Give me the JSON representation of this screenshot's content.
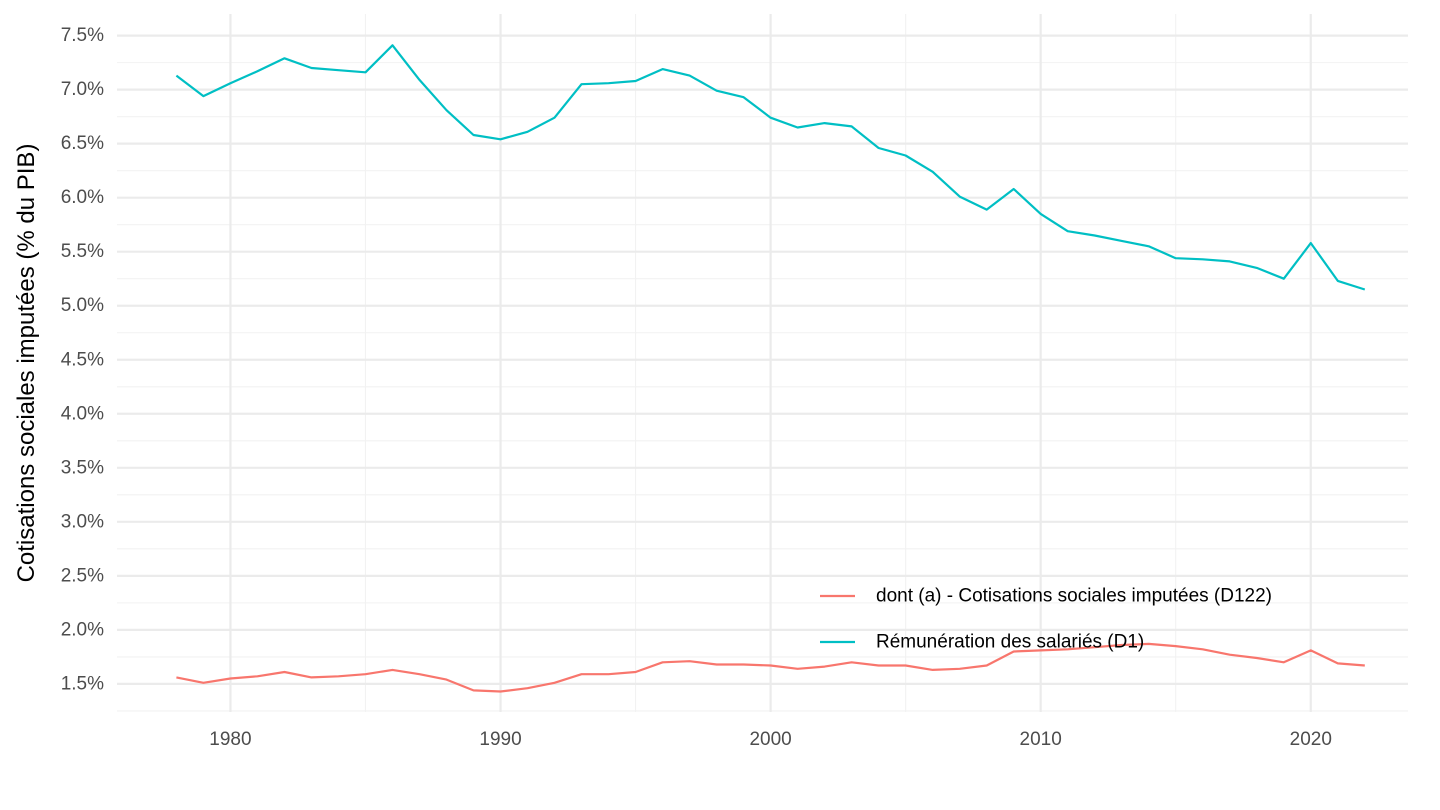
{
  "chart_data": {
    "type": "line",
    "title": "",
    "xlabel": "",
    "ylabel": "Cotisations sociales imputées (% du PIB)",
    "xlim": [
      1975.8,
      2023.6
    ],
    "ylim": [
      1.24,
      7.7
    ],
    "grid": true,
    "legend_position": "bottom-right",
    "x_ticks": [
      1980,
      1990,
      2000,
      2010,
      2020
    ],
    "x_tick_labels": [
      "1980",
      "1990",
      "2000",
      "2010",
      "2020"
    ],
    "y_ticks": [
      1.5,
      2.0,
      2.5,
      3.0,
      3.5,
      4.0,
      4.5,
      5.0,
      5.5,
      6.0,
      6.5,
      7.0,
      7.5
    ],
    "y_tick_labels": [
      "1.5%",
      "2.0%",
      "2.5%",
      "3.0%",
      "3.5%",
      "4.0%",
      "4.5%",
      "5.0%",
      "5.5%",
      "6.0%",
      "6.5%",
      "7.0%",
      "7.5%"
    ],
    "x": [
      1978,
      1979,
      1980,
      1981,
      1982,
      1983,
      1984,
      1985,
      1986,
      1987,
      1988,
      1989,
      1990,
      1991,
      1992,
      1993,
      1994,
      1995,
      1996,
      1997,
      1998,
      1999,
      2000,
      2001,
      2002,
      2003,
      2004,
      2005,
      2006,
      2007,
      2008,
      2009,
      2010,
      2011,
      2012,
      2013,
      2014,
      2015,
      2016,
      2017,
      2018,
      2019,
      2020,
      2021,
      2022
    ],
    "series": [
      {
        "name": "dont (a) - Cotisations sociales imputées (D122)",
        "color": "#F8766D",
        "values": [
          1.56,
          1.51,
          1.55,
          1.57,
          1.61,
          1.56,
          1.57,
          1.59,
          1.63,
          1.59,
          1.54,
          1.44,
          1.43,
          1.46,
          1.51,
          1.59,
          1.59,
          1.61,
          1.7,
          1.71,
          1.68,
          1.68,
          1.67,
          1.64,
          1.66,
          1.7,
          1.67,
          1.67,
          1.63,
          1.64,
          1.67,
          1.8,
          1.81,
          1.82,
          1.84,
          1.86,
          1.87,
          1.85,
          1.82,
          1.77,
          1.74,
          1.7,
          1.81,
          1.69,
          1.67
        ]
      },
      {
        "name": "Rémunération des salariés (D1)",
        "color": "#00BFC4",
        "values": [
          7.13,
          6.94,
          7.06,
          7.17,
          7.29,
          7.2,
          7.18,
          7.16,
          7.41,
          7.09,
          6.81,
          6.58,
          6.54,
          6.61,
          6.74,
          7.05,
          7.06,
          7.08,
          7.19,
          7.13,
          6.99,
          6.93,
          6.74,
          6.65,
          6.69,
          6.66,
          6.46,
          6.39,
          6.24,
          6.01,
          5.89,
          6.08,
          5.85,
          5.69,
          5.65,
          5.6,
          5.55,
          5.44,
          5.43,
          5.41,
          5.35,
          5.25,
          5.58,
          5.23,
          5.15
        ]
      }
    ]
  }
}
